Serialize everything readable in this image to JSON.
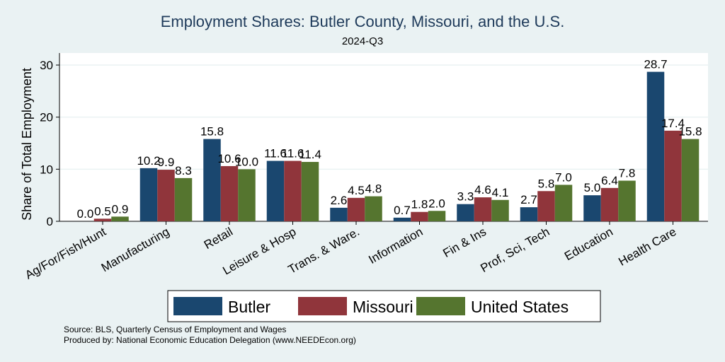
{
  "chart_data": {
    "type": "bar",
    "title": "Employment Shares: Butler County, Missouri, and the U.S.",
    "subtitle": "2024-Q3",
    "ylabel": "Share of Total Employment",
    "xlabel": "",
    "ylim": [
      0,
      32.5
    ],
    "yticks": [
      0,
      10,
      20,
      30
    ],
    "grid": true,
    "legend_placement": "bottom",
    "categories": [
      "Ag/For/Fish/Hunt",
      "Manufacturing",
      "Retail",
      "Leisure & Hosp",
      "Trans. & Ware.",
      "Information",
      "Fin & Ins",
      "Prof, Sci, Tech",
      "Education",
      "Health Care"
    ],
    "series": [
      {
        "name": "Butler",
        "color": "#1a476f",
        "values": [
          0.0,
          10.2,
          15.8,
          11.6,
          2.6,
          0.7,
          3.3,
          2.7,
          5.0,
          28.7
        ]
      },
      {
        "name": "Missouri",
        "color": "#90353b",
        "values": [
          0.5,
          9.9,
          10.6,
          11.6,
          4.5,
          1.8,
          4.6,
          5.8,
          6.4,
          17.4
        ]
      },
      {
        "name": "United States",
        "color": "#55752f",
        "values": [
          0.9,
          8.3,
          10.0,
          11.4,
          4.8,
          2.0,
          4.1,
          7.0,
          7.8,
          15.8
        ]
      }
    ]
  },
  "source": "Source: BLS, Quarterly Census of Employment and Wages",
  "produced": "Produced by: National Economic Education Delegation (www.NEEDEcon.org)"
}
